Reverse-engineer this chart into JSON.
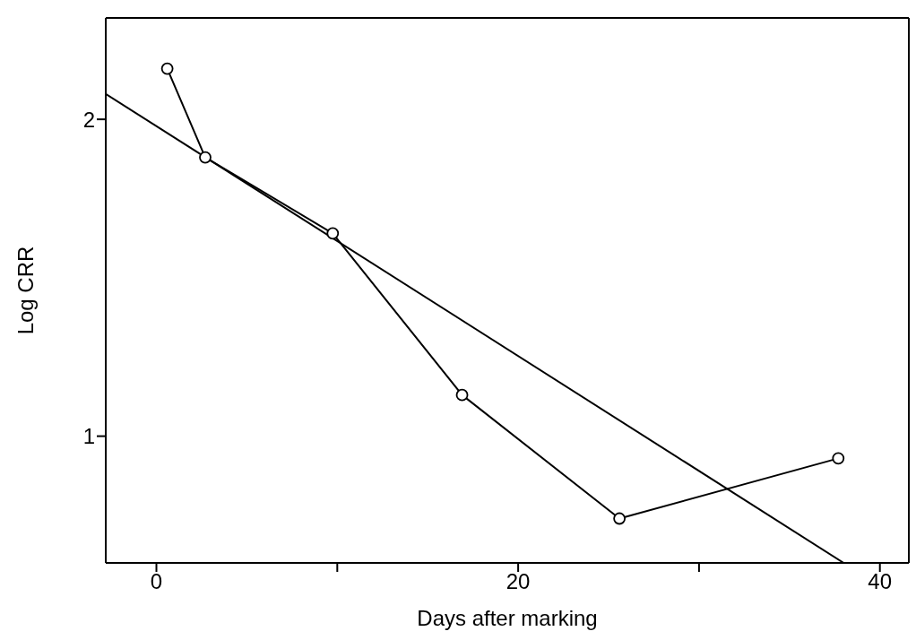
{
  "chart_data": {
    "type": "line",
    "xlabel": "Days after marking",
    "ylabel": "Log CRR",
    "xlim": [
      -2.8,
      41.6
    ],
    "ylim": [
      0.6,
      2.32
    ],
    "xticks": [
      0,
      {
        "value": 10,
        "label": null
      },
      20,
      {
        "value": 30,
        "label": null
      },
      40
    ],
    "yticks": [
      1,
      2
    ],
    "series": [
      {
        "color": "#000000",
        "marker": "circle",
        "x": [
          0.6,
          2.7,
          9.75,
          16.9,
          25.6,
          37.7
        ],
        "values": [
          2.16,
          1.88,
          1.64,
          1.13,
          0.74,
          0.93
        ]
      },
      {
        "color": "#000000",
        "marker": "none",
        "x": [
          -2.8,
          38.0
        ],
        "values": [
          2.08,
          0.6
        ]
      }
    ]
  }
}
